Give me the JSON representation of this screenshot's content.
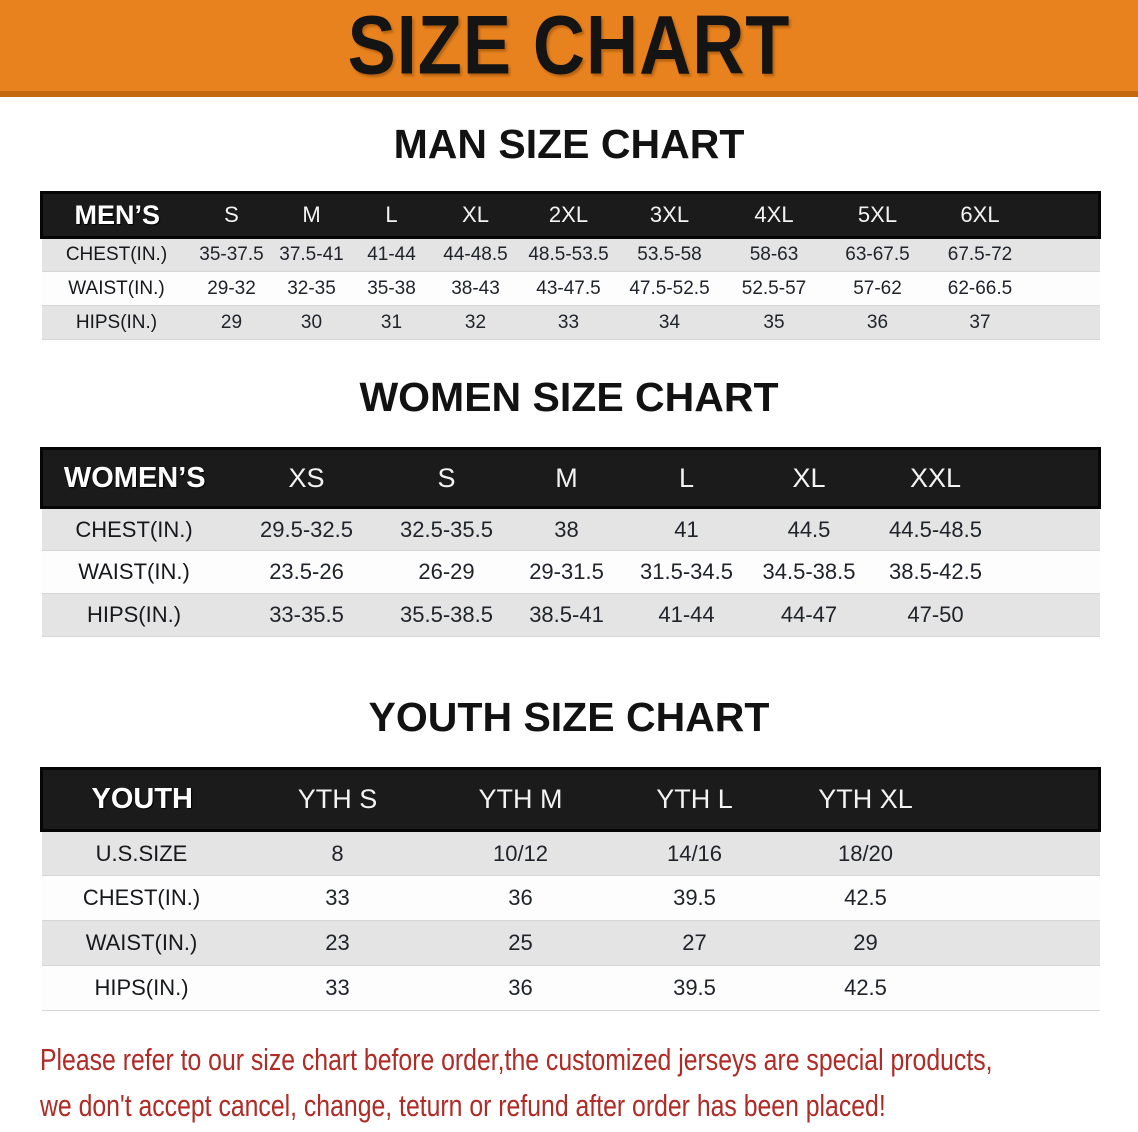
{
  "banner": {
    "title": "SIZE CHART",
    "bg_color": "#E8821E",
    "border_color": "#C4690D"
  },
  "sections": {
    "man": {
      "heading": "MAN SIZE CHART",
      "table": {
        "header_label": "MEN’S",
        "columns": [
          "S",
          "M",
          "L",
          "XL",
          "2XL",
          "3XL",
          "4XL",
          "5XL",
          "6XL"
        ],
        "rows": [
          {
            "label": "CHEST(IN.)",
            "values": [
              "35-37.5",
              "37.5-41",
              "41-44",
              "44-48.5",
              "48.5-53.5",
              "53.5-58",
              "58-63",
              "63-67.5",
              "67.5-72"
            ]
          },
          {
            "label": "WAIST(IN.)",
            "values": [
              "29-32",
              "32-35",
              "35-38",
              "38-43",
              "43-47.5",
              "47.5-52.5",
              "52.5-57",
              "57-62",
              "62-66.5"
            ]
          },
          {
            "label": "HIPS(IN.)",
            "values": [
              "29",
              "30",
              "31",
              "32",
              "33",
              "34",
              "35",
              "36",
              "37"
            ]
          }
        ]
      }
    },
    "women": {
      "heading": "WOMEN SIZE CHART",
      "table": {
        "header_label": "WOMEN’S",
        "columns": [
          "XS",
          "S",
          "M",
          "L",
          "XL",
          "XXL"
        ],
        "rows": [
          {
            "label": "CHEST(IN.)",
            "values": [
              "29.5-32.5",
              "32.5-35.5",
              "38",
              "41",
              "44.5",
              "44.5-48.5"
            ]
          },
          {
            "label": "WAIST(IN.)",
            "values": [
              "23.5-26",
              "26-29",
              "29-31.5",
              "31.5-34.5",
              "34.5-38.5",
              "38.5-42.5"
            ]
          },
          {
            "label": "HIPS(IN.)",
            "values": [
              "33-35.5",
              "35.5-38.5",
              "38.5-41",
              "41-44",
              "44-47",
              "47-50"
            ]
          }
        ]
      }
    },
    "youth": {
      "heading": "YOUTH SIZE CHART",
      "table": {
        "header_label": "YOUTH",
        "columns": [
          "YTH S",
          "YTH M",
          "YTH L",
          "YTH XL"
        ],
        "rows": [
          {
            "label": "U.S.SIZE",
            "values": [
              "8",
              "10/12",
              "14/16",
              "18/20"
            ]
          },
          {
            "label": "CHEST(IN.)",
            "values": [
              "33",
              "36",
              "39.5",
              "42.5"
            ]
          },
          {
            "label": "WAIST(IN.)",
            "values": [
              "23",
              "25",
              "27",
              "29"
            ]
          },
          {
            "label": "HIPS(IN.)",
            "values": [
              "33",
              "36",
              "39.5",
              "42.5"
            ]
          }
        ]
      }
    }
  },
  "disclaimer": {
    "line1": "Please refer to our size chart before order,the customized jerseys are special products,",
    "line2": "we don't accept cancel, change, teturn or refund after order has been placed!",
    "color": "#B02A26"
  }
}
